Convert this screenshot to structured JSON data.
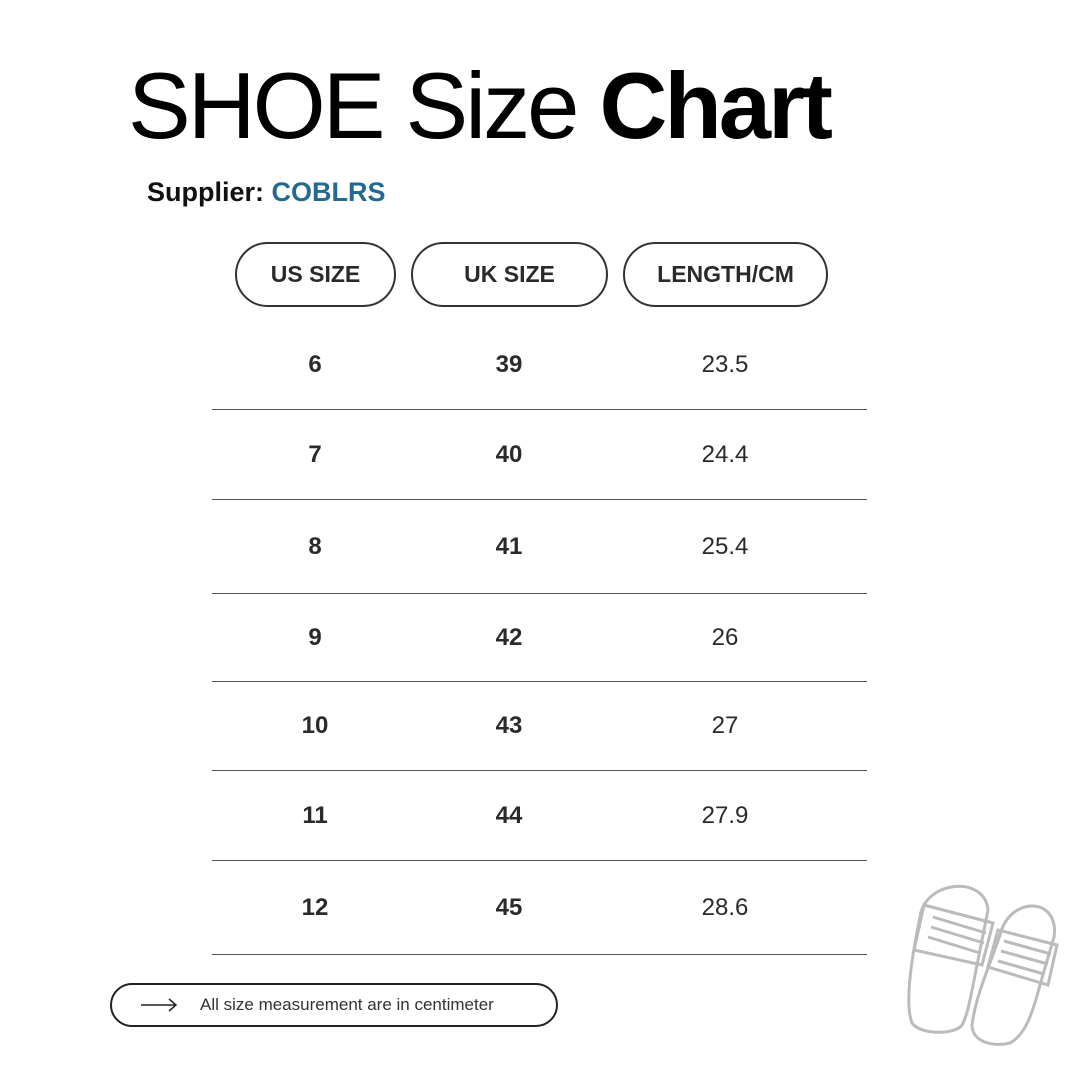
{
  "title": {
    "light": "SHOE Size ",
    "bold": "Chart"
  },
  "supplier": {
    "label": "Supplier:",
    "name": "COBLRS",
    "name_color": "#236a8e"
  },
  "headers": [
    "US SIZE",
    "UK SIZE",
    "LENGTH/CM"
  ],
  "rows": [
    [
      "6",
      "39",
      "23.5"
    ],
    [
      "7",
      "40",
      "24.4"
    ],
    [
      "8",
      "41",
      "25.4"
    ],
    [
      "9",
      "42",
      "26"
    ],
    [
      "10",
      "43",
      "27"
    ],
    [
      "11",
      "44",
      "27.9"
    ],
    [
      "12",
      "45",
      "28.6"
    ]
  ],
  "note": {
    "icon": "arrow-right-icon",
    "text": "All size measurement are in centimeter"
  },
  "illustration": "slippers-icon"
}
